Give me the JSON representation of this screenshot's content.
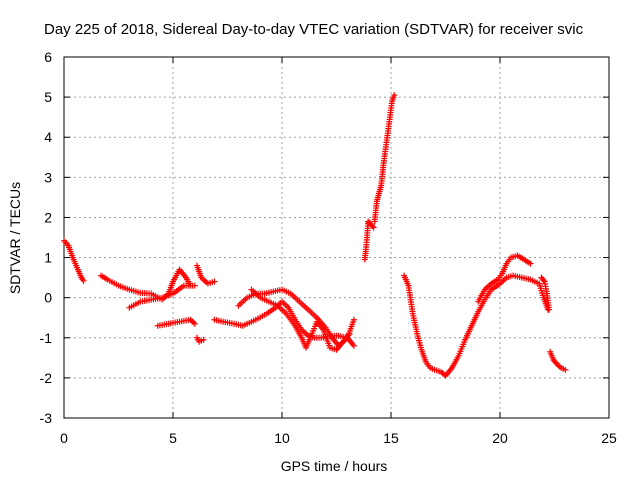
{
  "chart_data": {
    "type": "scatter",
    "title": "Day 225 of 2018, Sidereal Day-to-day VTEC variation (SDTVAR) for receiver svic",
    "xlabel": "GPS time / hours",
    "ylabel": "SDTVAR / TECUs",
    "xlim": [
      0,
      25
    ],
    "ylim": [
      -3,
      6
    ],
    "xticks": [
      "0",
      "5",
      "10",
      "15",
      "20",
      "25"
    ],
    "yticks": [
      "-3",
      "-2",
      "-1",
      "0",
      "1",
      "2",
      "3",
      "4",
      "5",
      "6"
    ],
    "grid": true,
    "marker": "+",
    "color": "#ff0000",
    "series": [
      {
        "name": "s1",
        "points": [
          [
            0.0,
            1.42
          ],
          [
            0.2,
            1.3
          ],
          [
            0.4,
            1.0
          ],
          [
            0.6,
            0.75
          ],
          [
            0.8,
            0.5
          ],
          [
            0.9,
            0.42
          ]
        ]
      },
      {
        "name": "s2",
        "points": [
          [
            1.7,
            0.55
          ],
          [
            2.0,
            0.45
          ],
          [
            2.5,
            0.3
          ],
          [
            3.0,
            0.2
          ],
          [
            3.5,
            0.12
          ],
          [
            4.0,
            0.1
          ],
          [
            4.5,
            -0.05
          ],
          [
            4.8,
            0.1
          ],
          [
            5.0,
            0.4
          ],
          [
            5.3,
            0.7
          ],
          [
            5.6,
            0.5
          ],
          [
            5.8,
            0.3
          ]
        ]
      },
      {
        "name": "s3",
        "points": [
          [
            3.0,
            -0.25
          ],
          [
            3.5,
            -0.1
          ],
          [
            4.0,
            -0.05
          ],
          [
            4.5,
            0.0
          ],
          [
            5.0,
            0.1
          ],
          [
            5.5,
            0.3
          ],
          [
            6.0,
            0.3
          ]
        ]
      },
      {
        "name": "s4",
        "points": [
          [
            4.3,
            -0.7
          ],
          [
            4.8,
            -0.65
          ],
          [
            5.3,
            -0.6
          ],
          [
            5.8,
            -0.55
          ],
          [
            6.0,
            -0.65
          ]
        ]
      },
      {
        "name": "s5",
        "points": [
          [
            6.1,
            -1.0
          ],
          [
            6.2,
            -1.1
          ],
          [
            6.4,
            -1.05
          ]
        ]
      },
      {
        "name": "s6",
        "points": [
          [
            6.1,
            0.8
          ],
          [
            6.3,
            0.5
          ],
          [
            6.6,
            0.35
          ],
          [
            6.9,
            0.4
          ]
        ]
      },
      {
        "name": "s7",
        "points": [
          [
            6.9,
            -0.55
          ],
          [
            7.3,
            -0.6
          ],
          [
            7.8,
            -0.65
          ],
          [
            8.2,
            -0.7
          ],
          [
            8.8,
            -0.55
          ],
          [
            9.3,
            -0.4
          ],
          [
            9.7,
            -0.25
          ],
          [
            10.0,
            -0.1
          ],
          [
            10.3,
            -0.25
          ],
          [
            10.6,
            -0.55
          ],
          [
            10.9,
            -0.8
          ],
          [
            11.2,
            -0.95
          ],
          [
            11.5,
            -1.0
          ],
          [
            11.8,
            -1.0
          ],
          [
            12.2,
            -0.95
          ],
          [
            12.6,
            -0.95
          ],
          [
            13.0,
            -1.0
          ],
          [
            13.3,
            -1.2
          ]
        ]
      },
      {
        "name": "s8",
        "points": [
          [
            8.0,
            -0.2
          ],
          [
            8.4,
            0.0
          ],
          [
            8.8,
            0.1
          ],
          [
            9.2,
            0.1
          ],
          [
            9.6,
            0.15
          ],
          [
            10.0,
            0.2
          ],
          [
            10.4,
            0.1
          ],
          [
            10.8,
            -0.1
          ],
          [
            11.2,
            -0.3
          ],
          [
            11.6,
            -0.5
          ],
          [
            12.0,
            -0.75
          ],
          [
            12.3,
            -1.0
          ],
          [
            12.6,
            -1.2
          ],
          [
            13.0,
            -1.0
          ],
          [
            13.3,
            -0.55
          ]
        ]
      },
      {
        "name": "s9",
        "points": [
          [
            8.6,
            0.2
          ],
          [
            9.0,
            0.0
          ],
          [
            9.4,
            -0.1
          ],
          [
            9.8,
            -0.2
          ],
          [
            10.2,
            -0.4
          ],
          [
            10.6,
            -0.7
          ],
          [
            10.9,
            -1.0
          ],
          [
            11.1,
            -1.25
          ],
          [
            11.3,
            -1.0
          ],
          [
            11.6,
            -0.6
          ],
          [
            11.9,
            -0.8
          ],
          [
            12.2,
            -1.25
          ],
          [
            12.5,
            -1.3
          ],
          [
            12.8,
            -1.1
          ],
          [
            13.1,
            -0.9
          ]
        ]
      },
      {
        "name": "s10",
        "points": [
          [
            13.8,
            0.95
          ],
          [
            13.85,
            1.2
          ],
          [
            13.9,
            1.5
          ],
          [
            13.95,
            1.9
          ],
          [
            14.05,
            1.85
          ],
          [
            14.2,
            1.75
          ]
        ]
      },
      {
        "name": "s11",
        "points": [
          [
            14.25,
            1.9
          ],
          [
            14.35,
            2.4
          ],
          [
            14.45,
            2.6
          ],
          [
            14.55,
            2.8
          ],
          [
            14.65,
            3.3
          ],
          [
            14.75,
            3.7
          ],
          [
            14.85,
            4.1
          ],
          [
            14.95,
            4.5
          ],
          [
            15.05,
            4.9
          ],
          [
            15.15,
            5.05
          ]
        ]
      },
      {
        "name": "s12",
        "points": [
          [
            15.6,
            0.55
          ],
          [
            15.8,
            0.3
          ],
          [
            16.0,
            -0.4
          ],
          [
            16.2,
            -0.9
          ],
          [
            16.4,
            -1.3
          ],
          [
            16.6,
            -1.6
          ],
          [
            16.8,
            -1.75
          ],
          [
            17.0,
            -1.8
          ],
          [
            17.3,
            -1.85
          ],
          [
            17.5,
            -1.95
          ],
          [
            17.8,
            -1.75
          ],
          [
            18.1,
            -1.45
          ],
          [
            18.4,
            -1.05
          ],
          [
            18.7,
            -0.7
          ],
          [
            19.0,
            -0.35
          ],
          [
            19.3,
            -0.05
          ],
          [
            19.6,
            0.2
          ],
          [
            20.0,
            0.35
          ],
          [
            20.3,
            0.5
          ],
          [
            20.6,
            0.55
          ],
          [
            21.0,
            0.5
          ],
          [
            21.4,
            0.45
          ],
          [
            21.8,
            0.35
          ],
          [
            22.0,
            0.0
          ],
          [
            22.2,
            -0.3
          ]
        ]
      },
      {
        "name": "s13",
        "points": [
          [
            19.0,
            -0.1
          ],
          [
            19.3,
            0.2
          ],
          [
            19.6,
            0.35
          ],
          [
            19.9,
            0.45
          ],
          [
            20.1,
            0.6
          ],
          [
            20.3,
            0.85
          ],
          [
            20.5,
            1.0
          ],
          [
            20.8,
            1.05
          ],
          [
            21.1,
            0.95
          ],
          [
            21.4,
            0.85
          ]
        ]
      },
      {
        "name": "s14",
        "points": [
          [
            21.9,
            0.5
          ],
          [
            22.05,
            0.4
          ],
          [
            22.15,
            0.1
          ],
          [
            22.25,
            -0.3
          ]
        ]
      },
      {
        "name": "s15",
        "points": [
          [
            22.3,
            -1.35
          ],
          [
            22.45,
            -1.55
          ],
          [
            22.6,
            -1.65
          ],
          [
            22.8,
            -1.75
          ],
          [
            23.0,
            -1.8
          ]
        ]
      }
    ]
  }
}
